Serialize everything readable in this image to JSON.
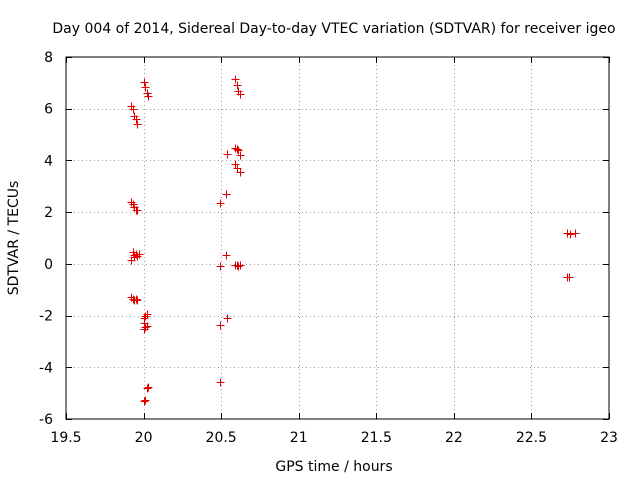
{
  "chart_data": {
    "type": "scatter",
    "title": "Day 004 of 2014, Sidereal Day-to-day VTEC variation (SDTVAR) for receiver igeo",
    "xlabel": "GPS time / hours",
    "ylabel": "SDTVAR / TECUs",
    "xlim": [
      19.5,
      23
    ],
    "ylim": [
      -6,
      8
    ],
    "xticks": [
      19.5,
      20,
      20.5,
      21,
      21.5,
      22,
      22.5,
      23
    ],
    "xtick_labels": [
      "19.5",
      "20",
      "20.5",
      "21",
      "21.5",
      "22",
      "22.5",
      "23"
    ],
    "yticks": [
      -6,
      -4,
      -2,
      0,
      2,
      4,
      6,
      8
    ],
    "ytick_labels": [
      "-6",
      "-4",
      "-2",
      "0",
      "2",
      "4",
      "6",
      "8"
    ],
    "grid": true,
    "marker": "plus",
    "color": "#e00000",
    "series": [
      {
        "name": "SDTVAR",
        "points": [
          [
            19.92,
            6.1
          ],
          [
            19.93,
            6.0
          ],
          [
            19.94,
            5.7
          ],
          [
            19.95,
            5.6
          ],
          [
            19.96,
            5.4
          ],
          [
            20.0,
            7.05
          ],
          [
            20.01,
            6.85
          ],
          [
            20.02,
            6.6
          ],
          [
            20.03,
            6.5
          ],
          [
            19.92,
            2.4
          ],
          [
            19.93,
            2.3
          ],
          [
            19.94,
            2.2
          ],
          [
            19.95,
            2.1
          ],
          [
            19.96,
            2.1
          ],
          [
            19.92,
            0.15
          ],
          [
            19.93,
            0.45
          ],
          [
            19.94,
            0.35
          ],
          [
            19.95,
            0.4
          ],
          [
            19.96,
            0.3
          ],
          [
            19.97,
            0.4
          ],
          [
            19.94,
            0.25
          ],
          [
            19.92,
            -1.3
          ],
          [
            19.93,
            -1.35
          ],
          [
            19.94,
            -1.4
          ],
          [
            19.95,
            -1.35
          ],
          [
            19.96,
            -1.4
          ],
          [
            20.0,
            -2.1
          ],
          [
            20.01,
            -2.0
          ],
          [
            20.02,
            -1.95
          ],
          [
            20.0,
            -2.3
          ],
          [
            20.01,
            -2.45
          ],
          [
            20.02,
            -2.4
          ],
          [
            20.0,
            -2.5
          ],
          [
            20.0,
            -5.3
          ],
          [
            20.01,
            -5.25
          ],
          [
            20.02,
            -4.8
          ],
          [
            20.03,
            -4.75
          ],
          [
            20.59,
            7.15
          ],
          [
            20.6,
            6.9
          ],
          [
            20.61,
            6.7
          ],
          [
            20.62,
            6.55
          ],
          [
            20.59,
            4.5
          ],
          [
            20.6,
            4.45
          ],
          [
            20.61,
            4.4
          ],
          [
            20.62,
            4.2
          ],
          [
            20.54,
            4.25
          ],
          [
            20.59,
            3.85
          ],
          [
            20.6,
            3.7
          ],
          [
            20.62,
            3.55
          ],
          [
            20.53,
            2.7
          ],
          [
            20.49,
            2.35
          ],
          [
            20.53,
            0.35
          ],
          [
            20.49,
            -0.1
          ],
          [
            20.59,
            -0.05
          ],
          [
            20.6,
            -0.05
          ],
          [
            20.61,
            -0.1
          ],
          [
            20.62,
            -0.05
          ],
          [
            20.49,
            -2.35
          ],
          [
            20.54,
            -2.1
          ],
          [
            20.49,
            -4.55
          ],
          [
            22.73,
            1.2
          ],
          [
            22.75,
            1.15
          ],
          [
            22.78,
            1.2
          ],
          [
            22.73,
            -0.5
          ],
          [
            22.74,
            -0.5
          ]
        ]
      }
    ]
  }
}
